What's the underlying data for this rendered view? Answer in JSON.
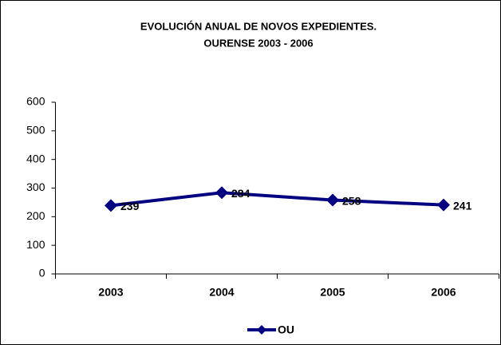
{
  "chart_data": {
    "type": "line",
    "title": [
      "EVOLUCIÓN ANUAL DE NOVOS EXPEDIENTES.",
      "OURENSE 2003 - 2006"
    ],
    "categories": [
      "2003",
      "2004",
      "2005",
      "2006"
    ],
    "series": [
      {
        "name": "OU",
        "color": "#000080",
        "values": [
          239,
          284,
          258,
          241
        ]
      }
    ],
    "ylim": [
      0,
      600
    ],
    "yticks": [
      0,
      100,
      200,
      300,
      400,
      500,
      600
    ],
    "grid": false,
    "legend": "bottom"
  }
}
